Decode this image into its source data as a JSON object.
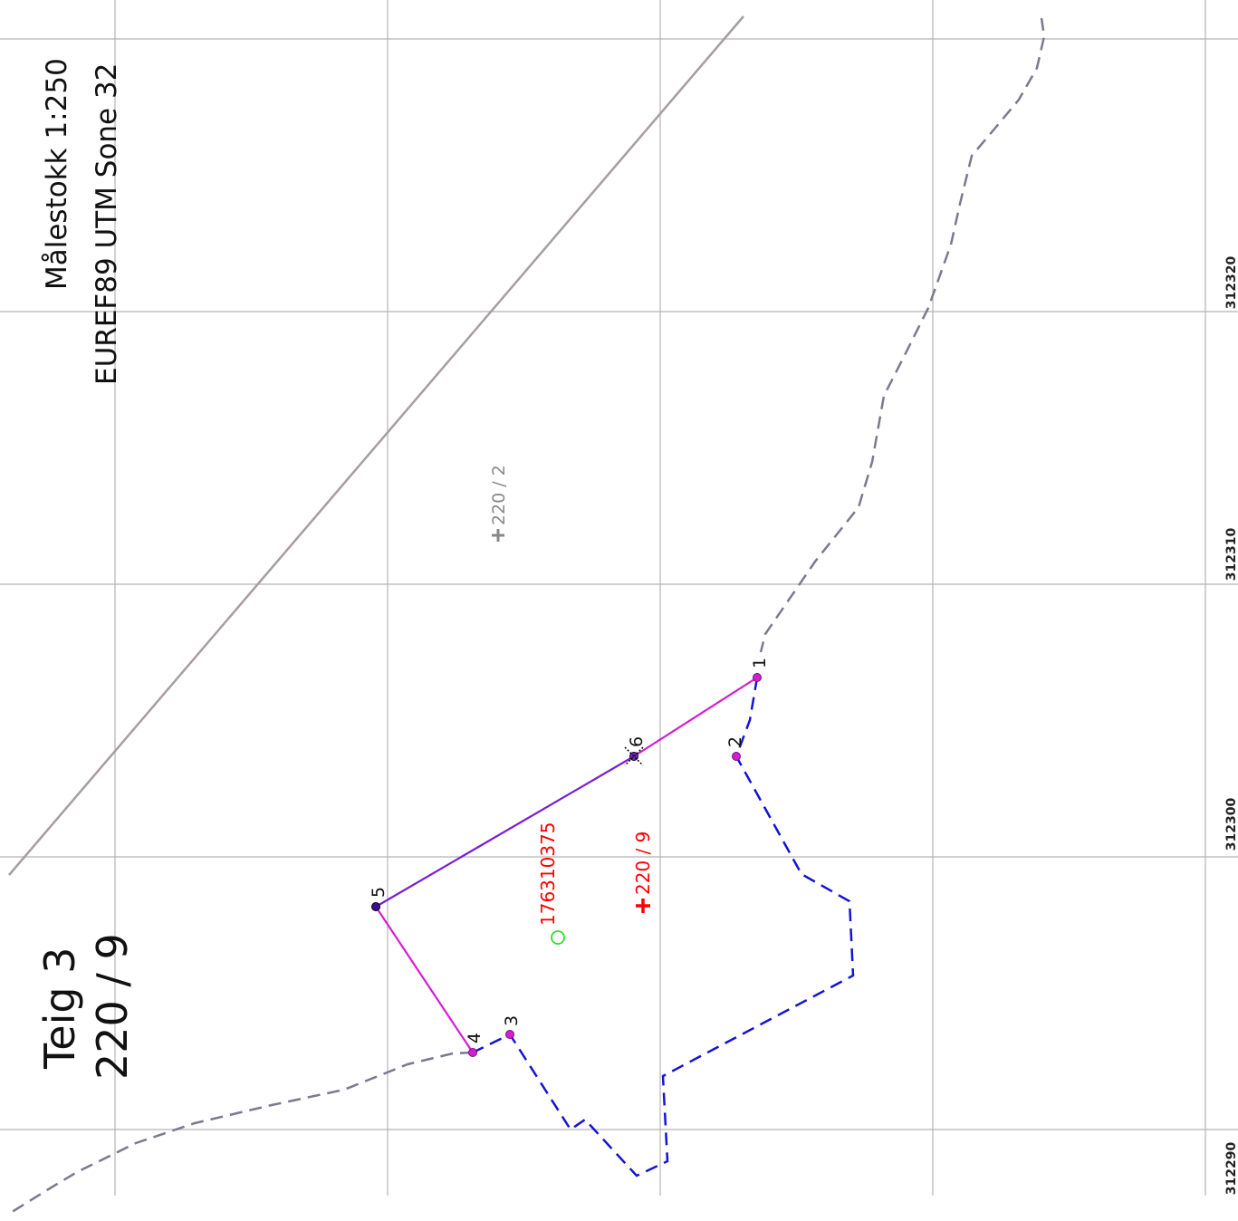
{
  "title": {
    "line1": "Teig 3",
    "line2": "220 / 9"
  },
  "scale_info": {
    "scale": "Målestokk 1:250",
    "crs": "EUREF89 UTM Sone 32"
  },
  "grid_labels": [
    "312290",
    "312300",
    "312310",
    "312320"
  ],
  "parcels": {
    "main": "220 / 9",
    "neighbour": "220 / 2"
  },
  "building_id": "176310375",
  "point_labels": [
    "1",
    "2",
    "3",
    "4",
    "5",
    "6"
  ],
  "colors": {
    "grid": "#b4b4b4",
    "neighbour_boundary": "#7a7a8e",
    "parcel_boundary": "#1414d2",
    "measured_line": "#d21ed2",
    "measured_line_alt": "#7a1ed2",
    "road_line": "#a89ca4",
    "parcel_label": "#ff0000",
    "building_marker": "#32dc32",
    "neighbour_label": "#888888"
  }
}
